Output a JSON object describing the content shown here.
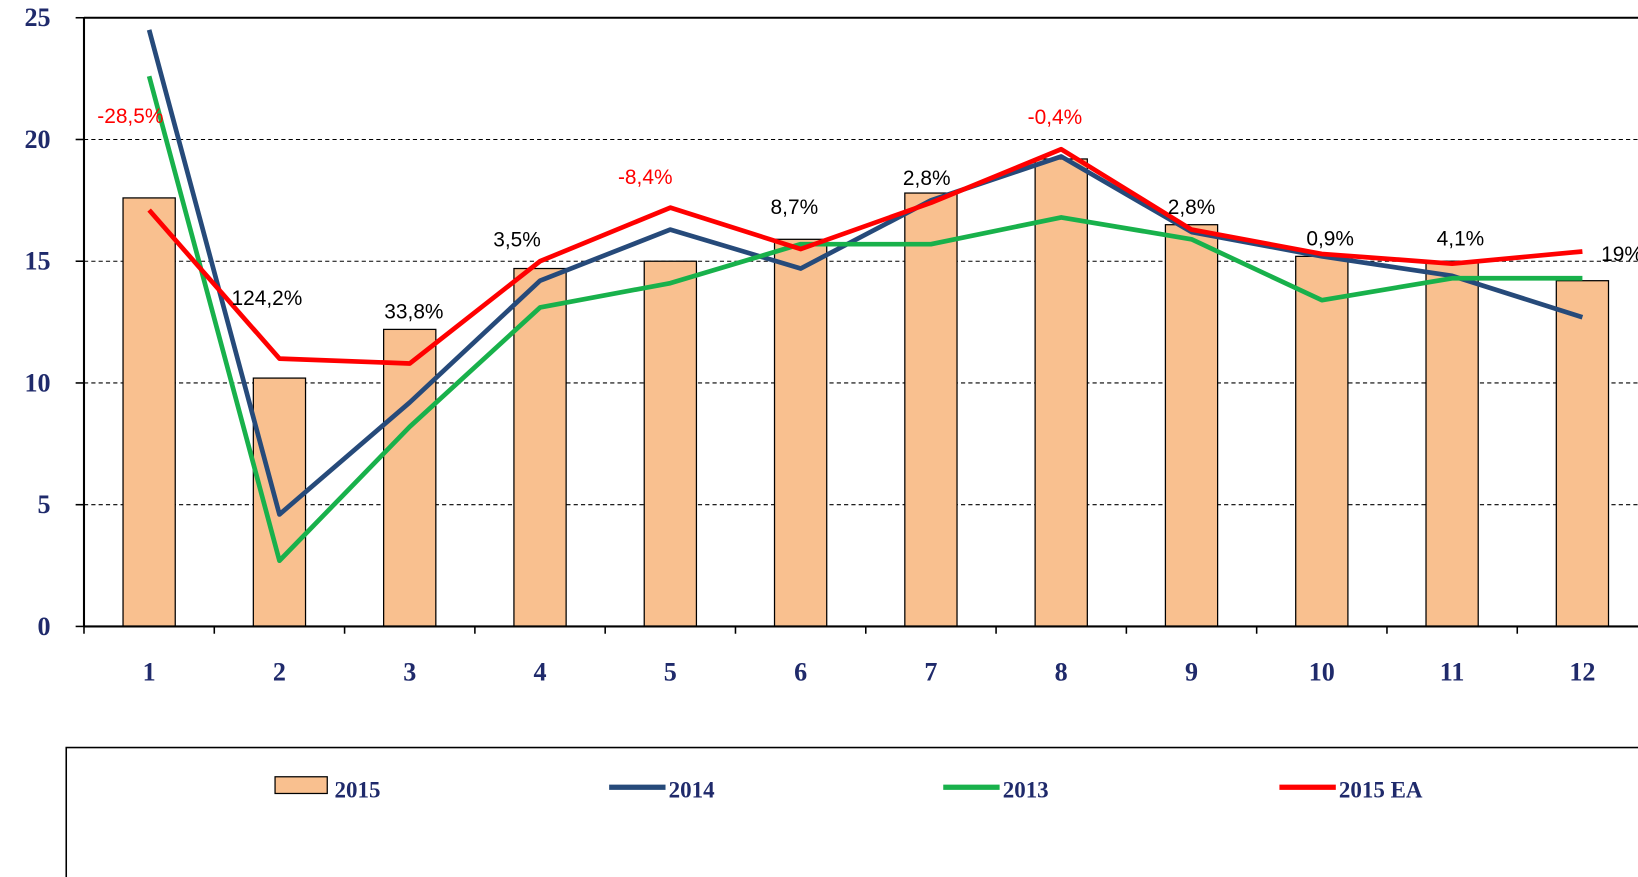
{
  "chart_data": {
    "type": "bar-line",
    "categories": [
      "1",
      "2",
      "3",
      "4",
      "5",
      "6",
      "7",
      "8",
      "9",
      "10",
      "11",
      "12"
    ],
    "series": [
      {
        "name": "2015",
        "type": "bar",
        "color": "#f9c08f",
        "values": [
          17.6,
          10.2,
          12.2,
          14.7,
          15.0,
          15.9,
          17.8,
          19.2,
          16.5,
          15.2,
          15.0,
          14.2
        ]
      },
      {
        "name": "2014",
        "type": "line",
        "color": "#264a7a",
        "values": [
          24.5,
          4.6,
          9.2,
          14.2,
          16.3,
          14.7,
          17.5,
          19.3,
          16.2,
          15.2,
          14.4,
          12.7
        ]
      },
      {
        "name": "2013",
        "type": "line",
        "color": "#18b14b",
        "values": [
          22.6,
          2.7,
          8.2,
          13.1,
          14.1,
          15.7,
          15.7,
          16.8,
          15.9,
          13.4,
          14.3,
          14.3
        ]
      },
      {
        "name": "2015 EA",
        "type": "line",
        "color": "#ff0000",
        "values": [
          17.1,
          11.0,
          10.8,
          15.0,
          17.2,
          15.5,
          17.4,
          19.6,
          16.3,
          15.3,
          14.9,
          15.4
        ]
      }
    ],
    "annotations": [
      {
        "text": "-28,5%",
        "color": "#ff0000"
      },
      {
        "text": "124,2%",
        "color": "#000000"
      },
      {
        "text": "33,8%",
        "color": "#000000"
      },
      {
        "text": "3,5%",
        "color": "#000000"
      },
      {
        "text": "-8,4%",
        "color": "#ff0000"
      },
      {
        "text": "8,7%",
        "color": "#000000"
      },
      {
        "text": "2,8%",
        "color": "#000000"
      },
      {
        "text": "-0,4%",
        "color": "#ff0000"
      },
      {
        "text": "2,8%",
        "color": "#000000"
      },
      {
        "text": "0,9%",
        "color": "#000000"
      },
      {
        "text": "4,1%",
        "color": "#000000"
      },
      {
        "text": "19%",
        "color": "#000000"
      }
    ],
    "ylim": [
      0,
      25
    ],
    "yticks": [
      0,
      5,
      10,
      15,
      20,
      25
    ],
    "grid": true,
    "legend": "bottom"
  }
}
